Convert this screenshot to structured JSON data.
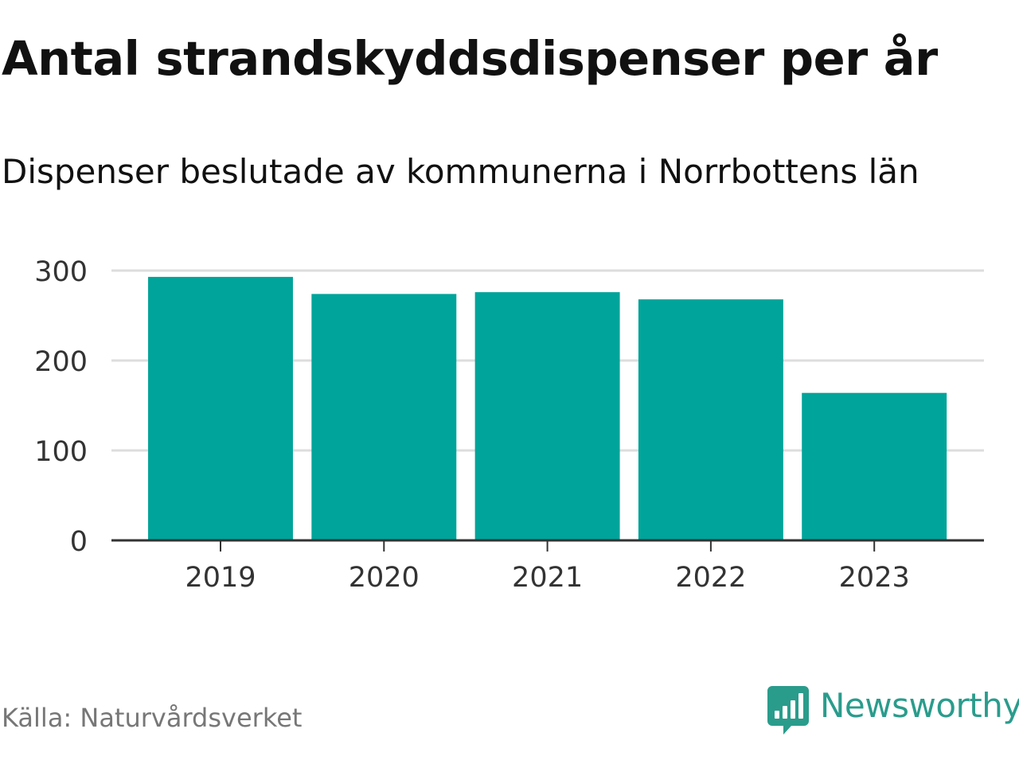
{
  "title": "Antal strandskyddsdispenser per år",
  "subtitle": "Dispenser beslutade av kommunerna i Norrbottens län",
  "source": "Källa: Naturvårdsverket",
  "brand": {
    "name": "Newsworthy",
    "icon": "newsworthy-logo-icon",
    "color": "#2a9c8c"
  },
  "colors": {
    "bar": "#00a49a",
    "grid": "#dddddd",
    "axis": "#333333"
  },
  "chart_data": {
    "type": "bar",
    "title": "Antal strandskyddsdispenser per år",
    "subtitle": "Dispenser beslutade av kommunerna i Norrbottens län",
    "xlabel": "",
    "ylabel": "",
    "categories": [
      "2019",
      "2020",
      "2021",
      "2022",
      "2023"
    ],
    "values": [
      293,
      274,
      276,
      268,
      164
    ],
    "ylim": [
      0,
      300
    ],
    "yticks": [
      0,
      100,
      200,
      300
    ],
    "ytick_labels": [
      "0",
      "100",
      "200",
      "300"
    ],
    "grid": true,
    "legend": "none"
  }
}
